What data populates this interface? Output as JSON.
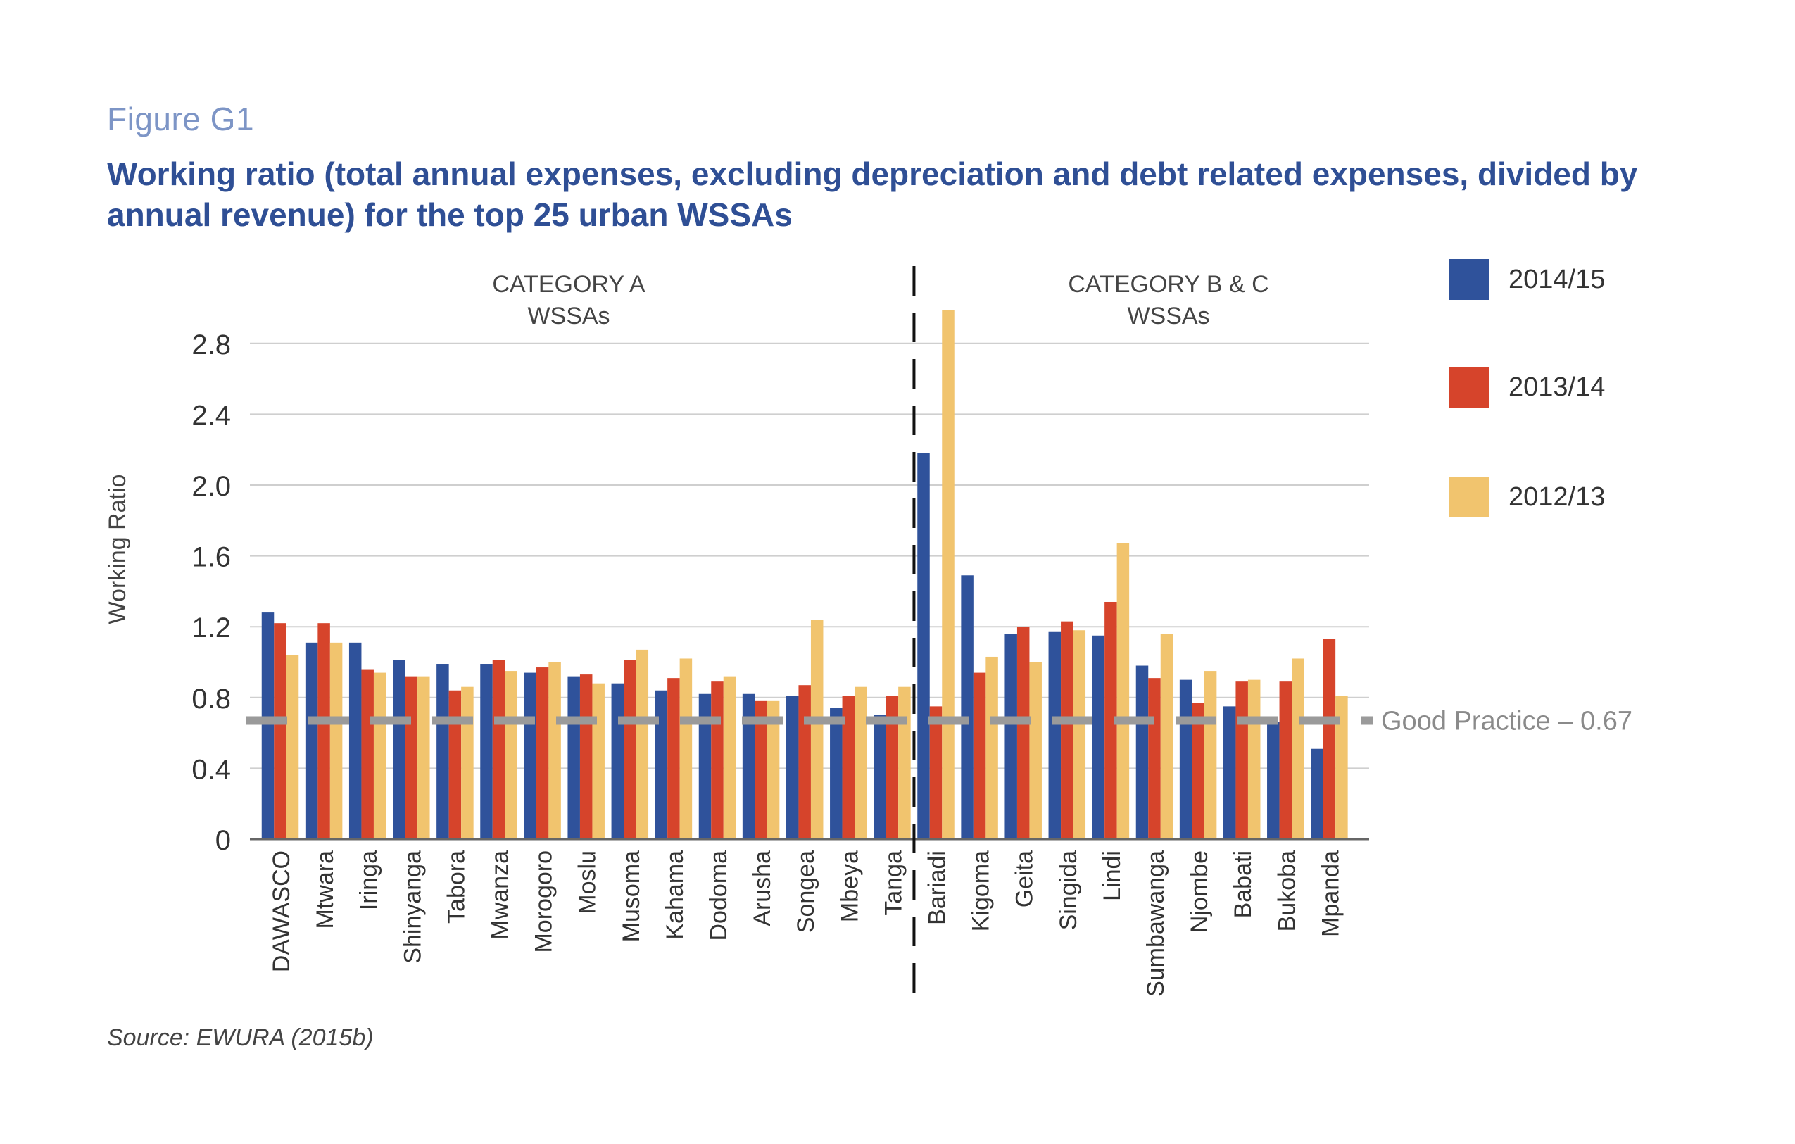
{
  "figure_label": "Figure G1",
  "source": "Source: EWURA (2015b)",
  "chart_data": {
    "type": "bar",
    "title": "Working ratio (total annual expenses, excluding depreciation and debt related expenses, divided by annual revenue) for the top 25 urban WSSAs",
    "ylabel": "Working Ratio",
    "xlabel": "",
    "ylim": [
      0,
      3.0
    ],
    "yticks": [
      0,
      0.4,
      0.8,
      1.2,
      1.6,
      2.0,
      2.4,
      2.8
    ],
    "ytick_labels": [
      "0",
      "0.4",
      "0.8",
      "1.2",
      "1.6",
      "2.0",
      "2.4",
      "2.8"
    ],
    "grid": true,
    "legend_position": "right",
    "categories": [
      "DAWASCO",
      "Mtwara",
      "Iringa",
      "Shinyanga",
      "Tabora",
      "Mwanza",
      "Morogoro",
      "Moslu",
      "Musoma",
      "Kahama",
      "Dodoma",
      "Arusha",
      "Songea",
      "Mbeya",
      "Tanga",
      "Bariadi",
      "Kigoma",
      "Geita",
      "Singida",
      "Lindi",
      "Sumbawanga",
      "Njombe",
      "Babati",
      "Bukoba",
      "Mpanda"
    ],
    "series": [
      {
        "name": "2014/15",
        "color": "#2f529b",
        "values": [
          1.28,
          1.11,
          1.11,
          1.01,
          0.99,
          0.99,
          0.94,
          0.92,
          0.88,
          0.84,
          0.82,
          0.82,
          0.81,
          0.74,
          0.7,
          2.18,
          1.49,
          1.16,
          1.17,
          1.15,
          0.98,
          0.9,
          0.75,
          0.66,
          0.51
        ]
      },
      {
        "name": "2013/14",
        "color": "#d6442b",
        "values": [
          1.22,
          1.22,
          0.96,
          0.92,
          0.84,
          1.01,
          0.97,
          0.93,
          1.01,
          0.91,
          0.89,
          0.78,
          0.87,
          0.81,
          0.81,
          0.75,
          0.94,
          1.2,
          1.23,
          1.34,
          0.91,
          0.77,
          0.89,
          0.89,
          1.13
        ]
      },
      {
        "name": "2012/13",
        "color": "#f1c46e",
        "values": [
          1.04,
          1.11,
          0.94,
          0.92,
          0.86,
          0.95,
          1.0,
          0.88,
          1.07,
          1.02,
          0.92,
          0.78,
          1.24,
          0.86,
          0.86,
          2.99,
          1.03,
          1.0,
          1.18,
          1.67,
          1.16,
          0.95,
          0.9,
          1.02,
          0.81
        ]
      }
    ],
    "groups": [
      {
        "label_line1": "CATEGORY A",
        "label_line2": "WSSAs",
        "from": 0,
        "to": 14
      },
      {
        "label_line1": "CATEGORY B & C",
        "label_line2": "WSSAs",
        "from": 15,
        "to": 24
      }
    ],
    "reference_line": {
      "label": "Good Practice – 0.67",
      "value": 0.67,
      "color": "#9a9a9a"
    }
  }
}
